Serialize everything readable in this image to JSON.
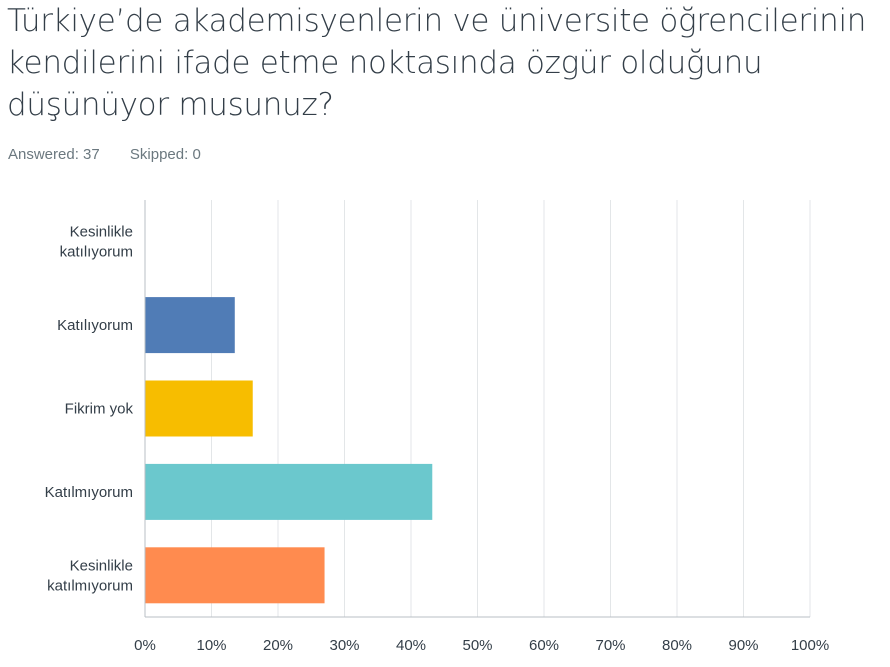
{
  "question": {
    "title": "Türkiye’de akademisyenlerin ve üniversite öğrencilerinin kendilerini ifade etme noktasında özgür olduğunu düşünüyor musunuz?",
    "answered": "Answered: 37",
    "skipped": "Skipped: 0"
  },
  "chart_data": {
    "type": "bar",
    "orientation": "horizontal",
    "title": "Türkiye’de akademisyenlerin ve üniversite öğrencilerinin kendilerini ifade etme noktasında özgür olduğunu düşünüyor musunuz?",
    "categories": [
      [
        "Kesinlikle",
        "katılıyorum"
      ],
      [
        "Katılıyorum"
      ],
      [
        "Fikrim yok"
      ],
      [
        "Katılmıyorum"
      ],
      [
        "Kesinlikle",
        "katılmıyorum"
      ]
    ],
    "values": [
      0,
      13.5,
      16.2,
      43.2,
      27.0
    ],
    "colors": [
      "#5b9bd5",
      "#507cb6",
      "#f7bd00",
      "#6bc8cd",
      "#ff8b4f"
    ],
    "xlim": [
      0,
      100
    ],
    "xticks": [
      "0%",
      "10%",
      "20%",
      "30%",
      "40%",
      "50%",
      "60%",
      "70%",
      "80%",
      "90%",
      "100%"
    ],
    "grid": true,
    "xlabel": "",
    "ylabel": ""
  }
}
